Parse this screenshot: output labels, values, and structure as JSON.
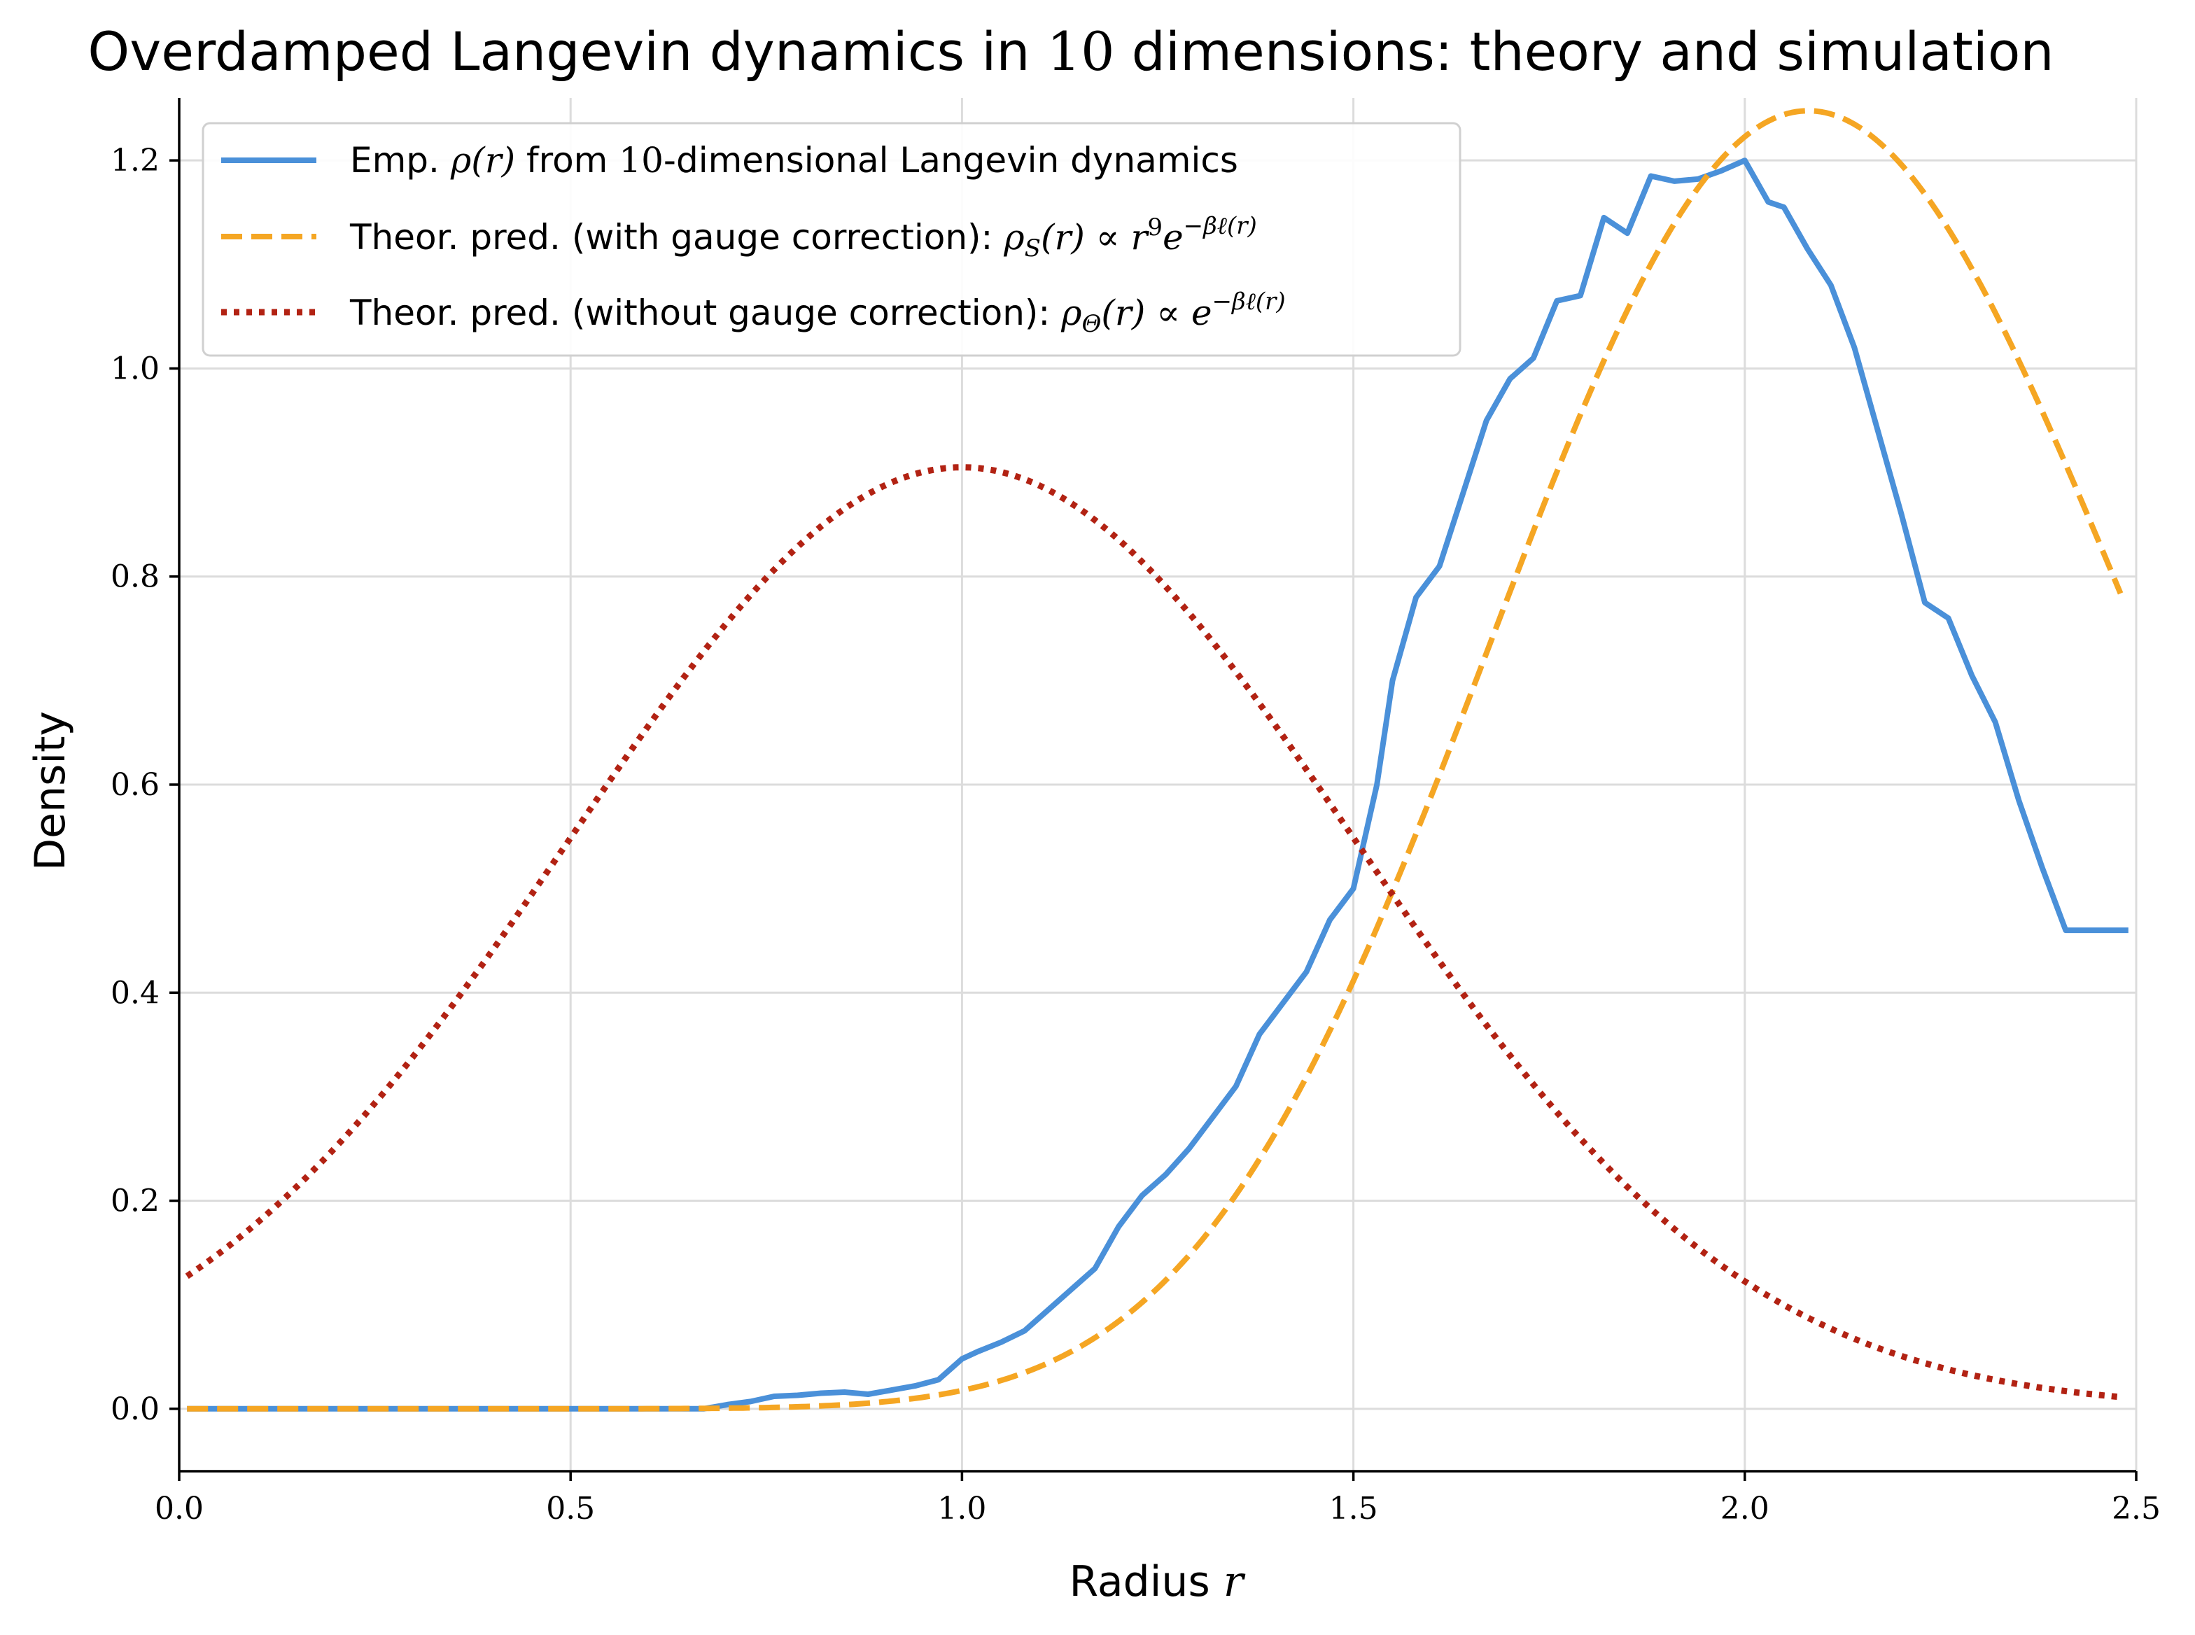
{
  "chart_data": {
    "type": "line",
    "title": "Overdamped Langevin dynamics in 10 dimensions: theory and simulation",
    "xlabel": "Radius r",
    "ylabel": "Density",
    "xlim": [
      0.0,
      2.5
    ],
    "ylim": [
      -0.06,
      1.26
    ],
    "xticks": [
      0.0,
      0.5,
      1.0,
      1.5,
      2.0,
      2.5
    ],
    "yticks": [
      0.0,
      0.2,
      0.4,
      0.6,
      0.8,
      1.0,
      1.2
    ],
    "xtick_labels": [
      "0.0",
      "0.5",
      "1.0",
      "1.5",
      "2.0",
      "2.5"
    ],
    "ytick_labels": [
      "0.0",
      "0.2",
      "0.4",
      "0.6",
      "0.8",
      "1.0",
      "1.2"
    ],
    "grid": true,
    "legend_position": "top-left",
    "series": [
      {
        "name": "Emp. ρ(r) from 10-dimensional Langevin dynamics",
        "color": "#4a90d9",
        "style": "solid",
        "x": [
          0.01,
          0.1,
          0.2,
          0.3,
          0.4,
          0.5,
          0.6,
          0.67,
          0.7,
          0.73,
          0.76,
          0.79,
          0.82,
          0.85,
          0.88,
          0.91,
          0.94,
          0.97,
          1.0,
          1.02,
          1.05,
          1.08,
          1.11,
          1.14,
          1.17,
          1.2,
          1.23,
          1.26,
          1.29,
          1.32,
          1.35,
          1.38,
          1.41,
          1.44,
          1.47,
          1.5,
          1.53,
          1.55,
          1.58,
          1.61,
          1.64,
          1.67,
          1.7,
          1.73,
          1.76,
          1.79,
          1.82,
          1.85,
          1.88,
          1.91,
          1.94,
          1.97,
          2.0,
          2.03,
          2.05,
          2.08,
          2.11,
          2.14,
          2.17,
          2.2,
          2.23,
          2.26,
          2.29,
          2.32,
          2.35,
          2.38,
          2.41,
          2.44,
          2.47,
          2.49
        ],
        "y": [
          0.0,
          0.0,
          0.0,
          0.0,
          0.0,
          0.0,
          0.0,
          0.0,
          0.004,
          0.007,
          0.012,
          0.013,
          0.015,
          0.016,
          0.014,
          0.018,
          0.022,
          0.028,
          0.048,
          0.055,
          0.064,
          0.075,
          0.095,
          0.115,
          0.135,
          0.175,
          0.205,
          0.225,
          0.25,
          0.28,
          0.31,
          0.36,
          0.39,
          0.42,
          0.47,
          0.5,
          0.6,
          0.7,
          0.78,
          0.81,
          0.88,
          0.95,
          0.99,
          1.01,
          1.065,
          1.07,
          1.145,
          1.13,
          1.185,
          1.18,
          1.182,
          1.19,
          1.2,
          1.16,
          1.155,
          1.115,
          1.08,
          1.02,
          0.94,
          0.86,
          0.775,
          0.76,
          0.705,
          0.66,
          0.585,
          0.52,
          0.46,
          0.46,
          0.46,
          0.46
        ],
        "x_trimmed": true
      },
      {
        "name": "Theor. pred. (with gauge correction): ρS(r) ∝ r⁹e^(−βℓ(r))",
        "color": "#f5a623",
        "style": "dashed",
        "func": "gauge",
        "peak_x": 1.9487,
        "peak_y": 1.182
      },
      {
        "name": "Theor. pred. (without gauge correction): ρΘ(r) ∝ e^(−βℓ(r))",
        "color": "#b22213",
        "style": "dotted",
        "func": "nogauge",
        "peak_x": 1.0,
        "peak_y": 0.905
      }
    ]
  },
  "legend": {
    "items": [
      {
        "prefix": "Emp. ",
        "math": "ρ(r)",
        "suffix": " from ",
        "math2": "10",
        "suffix2": "-dimensional Langevin dynamics"
      },
      {
        "prefix": "Theor. pred. (with gauge correction): ",
        "math": "ρ",
        "sub": "S",
        "math_rest": "(r) ∝ r",
        "sup": "9",
        "math_tail": "e",
        "sup2": "−βℓ(r)"
      },
      {
        "prefix": "Theor. pred. (without gauge correction): ",
        "math": "ρ",
        "sub": "Θ",
        "math_rest": "(r) ∝ e",
        "sup": "−βℓ(r)"
      }
    ]
  },
  "text": {
    "title_pre": "Overdamped Langevin dynamics in ",
    "title_num": "10",
    "title_post": " dimensions: theory and simulation",
    "xlabel_pre": "Radius ",
    "xlabel_var": "r",
    "ylabel": "Density"
  }
}
